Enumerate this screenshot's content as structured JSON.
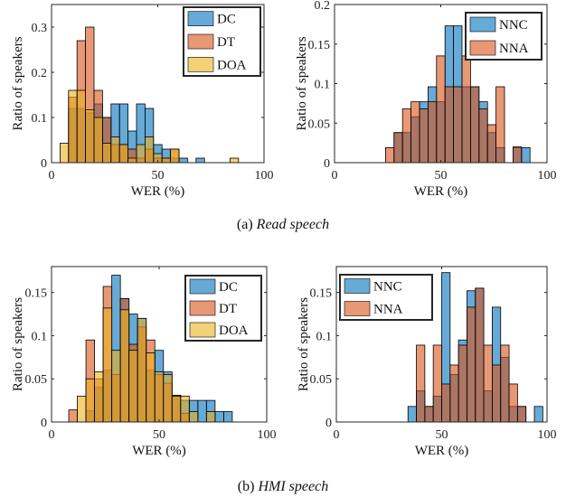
{
  "chart_data": [
    {
      "type": "bar",
      "panel": "(a) left",
      "xlabel": "WER (%)",
      "ylabel": "Ratio of speakers",
      "xlim": [
        0,
        100
      ],
      "ylim": [
        0,
        0.35
      ],
      "xticks": [
        0,
        50,
        100
      ],
      "yticks": [
        0,
        0.1,
        0.2,
        0.3
      ],
      "legend_position": "top-right",
      "bin_width": 4,
      "series": [
        {
          "name": "DC",
          "color": "#0072BD",
          "bin_starts": [
            4,
            8,
            12,
            16,
            20,
            24,
            28,
            32,
            36,
            40,
            44,
            48,
            52,
            56,
            60,
            64,
            68,
            72
          ],
          "values": [
            0,
            0.12,
            0.12,
            0.11,
            0.13,
            0.1,
            0.13,
            0.13,
            0.07,
            0.13,
            0.12,
            0.04,
            0.03,
            0.01,
            0.01,
            0,
            0.01,
            0
          ]
        },
        {
          "name": "DT",
          "color": "#D95319",
          "bin_starts": [
            4,
            8,
            12,
            16,
            20,
            24,
            28,
            32,
            36,
            40,
            44,
            48,
            52,
            56,
            60,
            64,
            68,
            72
          ],
          "values": [
            0,
            0.145,
            0.27,
            0.3,
            0.16,
            0.1,
            0.04,
            0.04,
            0.03,
            0.01,
            0.03,
            0.01,
            0.01,
            0.03,
            0,
            0,
            0,
            0
          ]
        },
        {
          "name": "DOA",
          "color": "#EDB120",
          "bin_starts": [
            4,
            8,
            12,
            16,
            20,
            24,
            28,
            32,
            36,
            40,
            44,
            48,
            52,
            56,
            60,
            64,
            68,
            72,
            84
          ],
          "values": [
            0.043,
            0.16,
            0.16,
            0.117,
            0.1,
            0.043,
            0.057,
            0.04,
            0.01,
            0.04,
            0.057,
            0.02,
            0.01,
            0.03,
            0,
            0,
            0,
            0,
            0.01
          ]
        }
      ]
    },
    {
      "type": "bar",
      "panel": "(a) right",
      "xlabel": "WER (%)",
      "ylabel": "Ratio of speakers",
      "xlim": [
        0,
        100
      ],
      "ylim": [
        0,
        0.2
      ],
      "xticks": [
        0,
        50,
        100
      ],
      "yticks": [
        0,
        0.05,
        0.1,
        0.15,
        0.2
      ],
      "legend_position": "top-right",
      "bin_width": 4,
      "series": [
        {
          "name": "NNC",
          "color": "#0072BD",
          "bin_starts": [
            24,
            28,
            32,
            36,
            40,
            44,
            48,
            52,
            56,
            60,
            64,
            68,
            72,
            76,
            80,
            84,
            88
          ],
          "values": [
            0,
            0.038,
            0.038,
            0.058,
            0.077,
            0.096,
            0.077,
            0.173,
            0.173,
            0.096,
            0.096,
            0.077,
            0.038,
            0.019,
            0,
            0.019,
            0.019
          ]
        },
        {
          "name": "NNA",
          "color": "#D95319",
          "bin_starts": [
            24,
            28,
            32,
            36,
            40,
            44,
            48,
            52,
            56,
            60,
            64,
            68,
            72,
            76,
            80,
            84,
            88
          ],
          "values": [
            0.019,
            0.038,
            0.068,
            0.077,
            0.068,
            0.077,
            0.135,
            0.096,
            0.096,
            0.135,
            0.096,
            0.068,
            0.048,
            0.096,
            0,
            0.02,
            0
          ]
        }
      ]
    },
    {
      "type": "bar",
      "panel": "(b) left",
      "xlabel": "WER (%)",
      "ylabel": "Ratio of speakers",
      "xlim": [
        0,
        100
      ],
      "ylim": [
        0,
        0.18
      ],
      "xticks": [
        0,
        50,
        100
      ],
      "yticks": [
        0,
        0.05,
        0.1,
        0.15
      ],
      "legend_position": "top-right",
      "bin_width": 4,
      "series": [
        {
          "name": "DC",
          "color": "#0072BD",
          "bin_starts": [
            8,
            12,
            16,
            20,
            24,
            28,
            32,
            36,
            40,
            44,
            48,
            52,
            56,
            60,
            64,
            68,
            72,
            76,
            80
          ],
          "values": [
            0,
            0,
            0.013,
            0.04,
            0.06,
            0.17,
            0.143,
            0.125,
            0.12,
            0.06,
            0.083,
            0.058,
            0.031,
            0.025,
            0.025,
            0.025,
            0.025,
            0.012,
            0.012
          ]
        },
        {
          "name": "DT",
          "color": "#D95319",
          "bin_starts": [
            8,
            12,
            16,
            20,
            24,
            28,
            32,
            36,
            40,
            44,
            48,
            52,
            56,
            60,
            64,
            68,
            72,
            76,
            80
          ],
          "values": [
            0.014,
            0,
            0.095,
            0.05,
            0.157,
            0.055,
            0.143,
            0.09,
            0.11,
            0.095,
            0.055,
            0.045,
            0.031,
            0.01,
            0,
            0,
            0,
            0,
            0
          ]
        },
        {
          "name": "DOA",
          "color": "#EDB120",
          "bin_starts": [
            8,
            12,
            16,
            20,
            24,
            28,
            32,
            36,
            40,
            44,
            48,
            52,
            56,
            60,
            64,
            68,
            72,
            76,
            80
          ],
          "values": [
            0,
            0.03,
            0.05,
            0.058,
            0.132,
            0.083,
            0.13,
            0.083,
            0.12,
            0.08,
            0.058,
            0.055,
            0.03,
            0.03,
            0.012,
            0,
            0.012,
            0,
            0
          ]
        }
      ]
    },
    {
      "type": "bar",
      "panel": "(b) right",
      "xlabel": "WER (%)",
      "ylabel": "Ratio of speakers",
      "xlim": [
        0,
        100
      ],
      "ylim": [
        0,
        0.18
      ],
      "xticks": [
        0,
        50,
        100
      ],
      "yticks": [
        0,
        0.05,
        0.1,
        0.15
      ],
      "legend_position": "top-left",
      "bin_width": 4,
      "series": [
        {
          "name": "NNC",
          "color": "#0072BD",
          "bin_starts": [
            34,
            38,
            42,
            46,
            50,
            54,
            58,
            62,
            66,
            70,
            74,
            78,
            82,
            86,
            90,
            94
          ],
          "values": [
            0.018,
            0.036,
            0.018,
            0.03,
            0.173,
            0.055,
            0.095,
            0.152,
            0.155,
            0.036,
            0.133,
            0.075,
            0.018,
            0.018,
            0,
            0.018
          ]
        },
        {
          "name": "NNA",
          "color": "#D95319",
          "bin_starts": [
            34,
            38,
            42,
            46,
            50,
            54,
            58,
            62,
            66,
            70,
            74,
            78,
            82,
            86,
            90,
            94
          ],
          "values": [
            0,
            0.089,
            0.018,
            0.089,
            0.044,
            0.066,
            0.089,
            0.133,
            0.155,
            0.089,
            0.066,
            0.089,
            0.044,
            0.018,
            0,
            0
          ]
        }
      ]
    }
  ],
  "captions": {
    "a_prefix": "(a) ",
    "a_italic": "Read speech",
    "b_prefix": "(b) ",
    "b_italic": "HMI speech"
  }
}
